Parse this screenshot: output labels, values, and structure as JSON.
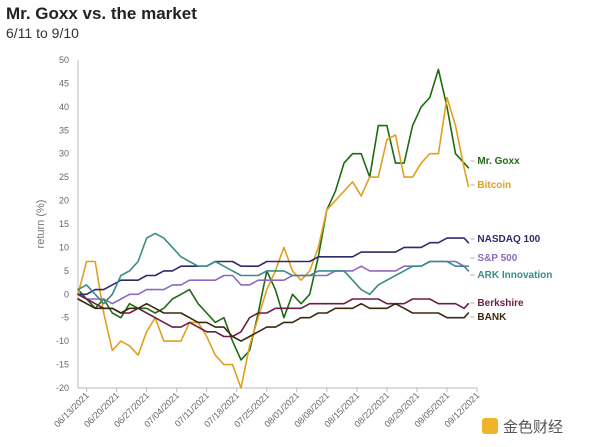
{
  "chart_data": {
    "type": "line",
    "title": "Mr. Goxx vs. the market",
    "subtitle": "6/11 to 9/10",
    "xlabel": "",
    "ylabel": "return (%)",
    "ylim": [
      -20,
      50
    ],
    "yticks": [
      -20,
      -15,
      -10,
      -5,
      0,
      5,
      10,
      15,
      20,
      25,
      30,
      35,
      40,
      45,
      50
    ],
    "grid": false,
    "legend": "right-end labels",
    "xticks": [
      "06/13/2021",
      "06/20/2021",
      "06/27/2021",
      "07/04/2021",
      "07/11/2021",
      "07/18/2021",
      "07/25/2021",
      "08/01/2021",
      "08/08/2021",
      "08/15/2021",
      "08/22/2021",
      "08/29/2021",
      "09/05/2021",
      "09/12/2021"
    ],
    "x": [
      "06/11",
      "06/13",
      "06/15",
      "06/17",
      "06/19",
      "06/21",
      "06/23",
      "06/25",
      "06/27",
      "06/29",
      "07/01",
      "07/03",
      "07/05",
      "07/07",
      "07/09",
      "07/11",
      "07/13",
      "07/15",
      "07/17",
      "07/19",
      "07/21",
      "07/23",
      "07/25",
      "07/27",
      "07/29",
      "07/31",
      "08/02",
      "08/04",
      "08/06",
      "08/08",
      "08/10",
      "08/12",
      "08/14",
      "08/16",
      "08/18",
      "08/20",
      "08/22",
      "08/24",
      "08/26",
      "08/28",
      "08/30",
      "09/01",
      "09/03",
      "09/05",
      "09/07",
      "09/09",
      "09/10"
    ],
    "series": [
      {
        "name": "Mr. Goxx",
        "color": "#1e6b12",
        "values": [
          1,
          -1,
          -3,
          -1,
          -4,
          -5,
          -2,
          -3,
          -3,
          -4,
          -3,
          -1,
          0,
          1,
          -2,
          -4,
          -6,
          -5,
          -10,
          -14,
          -12,
          -4,
          5,
          1,
          -5,
          0,
          -2,
          0,
          8,
          18,
          22,
          28,
          30,
          30,
          25,
          36,
          36,
          28,
          28,
          36,
          40,
          42,
          48,
          40,
          30,
          28,
          27
        ]
      },
      {
        "name": "Bitcoin",
        "color": "#e0a020",
        "values": [
          0,
          7,
          7,
          -4,
          -12,
          -10,
          -11,
          -13,
          -8,
          -5,
          -10,
          -10,
          -10,
          -6,
          -6,
          -9,
          -13,
          -15,
          -15,
          -20,
          -11,
          -5,
          1,
          5,
          10,
          5,
          3,
          5,
          10,
          18,
          20,
          22,
          24,
          21,
          25,
          25,
          33,
          34,
          25,
          25,
          28,
          30,
          30,
          42,
          36,
          27,
          23
        ]
      },
      {
        "name": "NASDAQ 100",
        "color": "#2f2a6b",
        "values": [
          0,
          0,
          1,
          1,
          2,
          3,
          3,
          3,
          4,
          4,
          5,
          5,
          6,
          6,
          6,
          6,
          7,
          7,
          7,
          6,
          6,
          6,
          7,
          7,
          7,
          7,
          7,
          7,
          8,
          8,
          8,
          8,
          8,
          9,
          9,
          9,
          9,
          9,
          10,
          10,
          10,
          11,
          11,
          12,
          12,
          12,
          11
        ]
      },
      {
        "name": "S&P 500",
        "color": "#8a6bbf",
        "values": [
          0,
          -1,
          -1,
          -1,
          -2,
          -1,
          0,
          0,
          1,
          1,
          1,
          2,
          2,
          3,
          3,
          3,
          3,
          4,
          4,
          2,
          2,
          3,
          3,
          3,
          3,
          4,
          4,
          4,
          4,
          4,
          5,
          5,
          5,
          6,
          5,
          5,
          5,
          5,
          6,
          6,
          6,
          7,
          7,
          7,
          7,
          6,
          6
        ]
      },
      {
        "name": "ARK Innovation",
        "color": "#3a8c86",
        "values": [
          1,
          2,
          0,
          -2,
          0,
          4,
          5,
          7,
          12,
          13,
          12,
          10,
          8,
          7,
          6,
          6,
          7,
          6,
          5,
          4,
          4,
          4,
          5,
          5,
          5,
          4,
          4,
          4,
          5,
          5,
          5,
          5,
          3,
          1,
          0,
          2,
          3,
          4,
          5,
          6,
          6,
          7,
          7,
          7,
          6,
          6,
          5
        ]
      },
      {
        "name": "Berkshire",
        "color": "#6b1f47",
        "values": [
          0,
          -1,
          -2,
          -3,
          -3,
          -4,
          -4,
          -3,
          -4,
          -5,
          -6,
          -7,
          -7,
          -6,
          -7,
          -8,
          -8,
          -9,
          -9,
          -8,
          -5,
          -4,
          -4,
          -3,
          -3,
          -3,
          -3,
          -2,
          -2,
          -2,
          -2,
          -2,
          -1,
          -1,
          -1,
          -1,
          -2,
          -2,
          -2,
          -1,
          -1,
          -1,
          -2,
          -2,
          -2,
          -3,
          -2
        ]
      },
      {
        "name": "BANK",
        "color": "#3a2a10",
        "values": [
          -1,
          -2,
          -3,
          -3,
          -3,
          -4,
          -3,
          -3,
          -2,
          -3,
          -4,
          -4,
          -4,
          -5,
          -6,
          -6,
          -7,
          -7,
          -9,
          -10,
          -9,
          -8,
          -7,
          -7,
          -6,
          -6,
          -5,
          -5,
          -4,
          -4,
          -3,
          -3,
          -3,
          -2,
          -3,
          -3,
          -3,
          -2,
          -3,
          -4,
          -4,
          -4,
          -4,
          -5,
          -5,
          -5,
          -4
        ]
      }
    ]
  },
  "watermark": {
    "text": "金色财经"
  }
}
